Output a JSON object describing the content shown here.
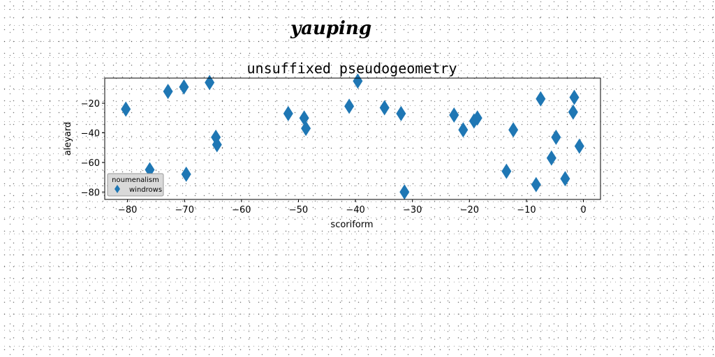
{
  "suptitle": "yauping",
  "chart_data": {
    "type": "scatter",
    "title": "unsuffixed pseudogeometry",
    "xlabel": "scoriform",
    "ylabel": "aleyard",
    "xlim": [
      -84,
      3
    ],
    "ylim": [
      -85,
      -3
    ],
    "xticks": [
      -80,
      -70,
      -60,
      -50,
      -40,
      -30,
      -20,
      -10,
      0
    ],
    "yticks": [
      -80,
      -60,
      -40,
      -20
    ],
    "grid": false,
    "legend": {
      "title": "noumenalism",
      "placement": "lower-left",
      "entries": [
        "windrows"
      ]
    },
    "marker": "diamond",
    "color": "#1f77b4",
    "series": [
      {
        "name": "windrows",
        "x": [
          -80.3,
          -72.9,
          -70.1,
          -65.6,
          -76.1,
          -64.5,
          -64.3,
          -69.7,
          -51.8,
          -49.0,
          -48.7,
          -41.1,
          -39.6,
          -34.9,
          -32.0,
          -31.4,
          -22.7,
          -21.1,
          -19.2,
          -18.6,
          -13.5,
          -12.3,
          -8.3,
          -7.5,
          -5.6,
          -4.8,
          -3.2,
          -1.8,
          -1.6,
          -0.7
        ],
        "y": [
          -24,
          -12,
          -9,
          -6,
          -65,
          -43,
          -48,
          -68,
          -27,
          -30,
          -37,
          -22,
          -5,
          -23,
          -27,
          -80,
          -28,
          -38,
          -32,
          -30,
          -66,
          -38,
          -75,
          -17,
          -57,
          -43,
          -71,
          -26,
          -16,
          -49
        ]
      }
    ]
  }
}
